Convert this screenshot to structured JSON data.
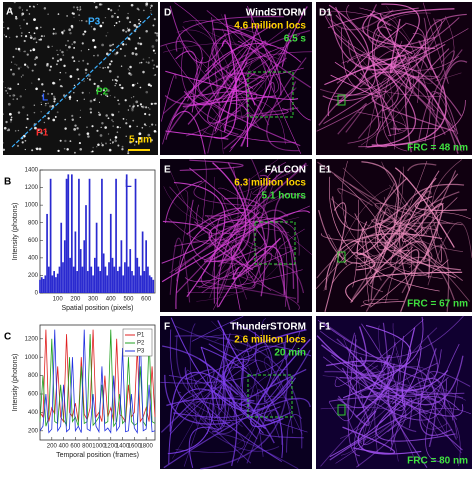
{
  "image_panels": {
    "A": {
      "label": "A",
      "annotations": [
        "P3",
        "L",
        "P2",
        "P1"
      ],
      "scale_bar": "5 µm"
    },
    "D": {
      "label": "D",
      "method": "WindSTORM",
      "locs": "4.6 million locs",
      "time": "6.5 s"
    },
    "D1": {
      "label": "D1",
      "frc": "FRC = 48 nm"
    },
    "E": {
      "label": "E",
      "method": "FALCON",
      "locs": "6.3 million locs",
      "time": "5.1 hours"
    },
    "E1": {
      "label": "E1",
      "frc": "FRC = 67 nm"
    },
    "F": {
      "label": "F",
      "method": "ThunderSTORM",
      "locs": "2.6 million locs",
      "time": "20 min"
    },
    "F1": {
      "label": "F1",
      "frc": "FRC = 80 nm"
    }
  },
  "chart_data": [
    {
      "type": "stem",
      "panel_label": "B",
      "annotation": "L",
      "x_label": "Spatial position (pixels)",
      "y_label": "Intensity (photons)",
      "x": [
        0,
        10,
        20,
        30,
        40,
        50,
        60,
        70,
        80,
        90,
        100,
        110,
        120,
        130,
        140,
        150,
        160,
        170,
        180,
        190,
        200,
        210,
        220,
        230,
        240,
        250,
        260,
        270,
        280,
        290,
        300,
        310,
        320,
        330,
        340,
        350,
        360,
        370,
        380,
        390,
        400,
        410,
        420,
        430,
        440,
        450,
        460,
        470,
        480,
        490,
        500,
        510,
        520,
        530,
        540,
        550,
        560,
        570,
        580,
        590,
        600,
        610,
        620,
        630,
        640
      ],
      "series": [
        {
          "color": "#2a2ad0",
          "values": [
            150,
            180,
            160,
            200,
            900,
            300,
            1300,
            200,
            250,
            180,
            220,
            300,
            800,
            350,
            600,
            1300,
            1350,
            400,
            1350,
            300,
            700,
            250,
            1300,
            500,
            300,
            600,
            1000,
            250,
            1300,
            300,
            200,
            400,
            800,
            300,
            250,
            1300,
            450,
            300,
            200,
            350,
            900,
            400,
            300,
            1300,
            250,
            300,
            600,
            200,
            350,
            1350,
            300,
            500,
            250,
            200,
            1300,
            400,
            300,
            200,
            700,
            250,
            600,
            300,
            200,
            180,
            150
          ]
        }
      ],
      "xlim": [
        0,
        650
      ],
      "xticks": [
        100,
        200,
        300,
        400,
        500,
        600
      ],
      "ylim": [
        0,
        1400
      ],
      "yticks": [
        0,
        200,
        400,
        600,
        800,
        1000,
        1200,
        1400
      ]
    },
    {
      "type": "line",
      "panel_label": "C",
      "x_label": "Temporal position (frames)",
      "y_label": "Intensity (photons)",
      "x": [
        0,
        50,
        100,
        150,
        200,
        250,
        300,
        350,
        400,
        450,
        500,
        550,
        600,
        650,
        700,
        750,
        800,
        850,
        900,
        950,
        1000,
        1050,
        1100,
        1150,
        1200,
        1250,
        1300,
        1350,
        1400,
        1450,
        1500,
        1550,
        1600,
        1650,
        1700,
        1750,
        1800,
        1850,
        1900,
        1950
      ],
      "series": [
        {
          "name": "P1",
          "color": "#e02020",
          "values": [
            400,
            350,
            1300,
            300,
            450,
            380,
            900,
            350,
            300,
            1250,
            400,
            350,
            500,
            300,
            1000,
            380,
            320,
            450,
            1300,
            350,
            400,
            300,
            800,
            350,
            450,
            300,
            1200,
            380,
            350,
            300,
            700,
            350,
            400,
            1100,
            300,
            350,
            450,
            300,
            900,
            350
          ]
        },
        {
          "name": "P2",
          "color": "#20a020",
          "values": [
            300,
            800,
            250,
            350,
            1200,
            300,
            280,
            700,
            320,
            260,
            1000,
            300,
            350,
            250,
            900,
            280,
            300,
            1250,
            260,
            300,
            350,
            700,
            280,
            300,
            1300,
            250,
            300,
            600,
            280,
            320,
            1000,
            300,
            260,
            280,
            900,
            300,
            250,
            1200,
            300,
            280
          ]
        },
        {
          "name": "P3",
          "color": "#2030e0",
          "values": [
            200,
            250,
            600,
            180,
            220,
            1300,
            200,
            250,
            700,
            190,
            220,
            1000,
            200,
            250,
            180,
            1300,
            220,
            200,
            600,
            250,
            190,
            900,
            200,
            230,
            180,
            800,
            200,
            250,
            1100,
            190,
            200,
            600,
            230,
            180,
            1250,
            200,
            220,
            700,
            190,
            200
          ]
        }
      ],
      "xlim": [
        0,
        1950
      ],
      "xticks": [
        200,
        400,
        600,
        800,
        1000,
        1200,
        1400,
        1600,
        1800
      ],
      "ylim": [
        100,
        1350
      ],
      "yticks": [
        200,
        400,
        600,
        800,
        1000,
        1200
      ],
      "legend": "upper right"
    }
  ]
}
